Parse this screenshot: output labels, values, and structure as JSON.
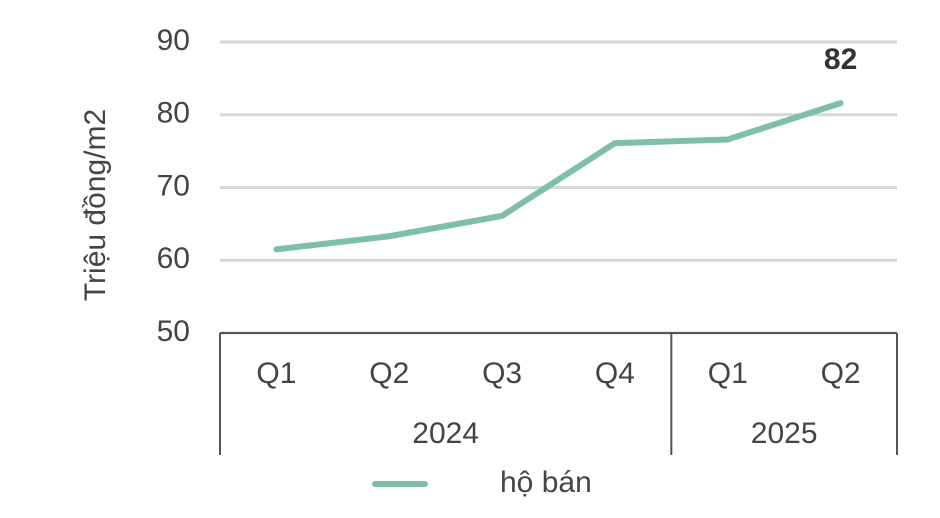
{
  "chart_data": {
    "type": "line",
    "y_label": "Triệu đồng/m2",
    "groups": [
      {
        "name": "2024",
        "categories": [
          "Q1",
          "Q2",
          "Q3",
          "Q4"
        ]
      },
      {
        "name": "2025",
        "categories": [
          "Q1",
          "Q2"
        ]
      }
    ],
    "series": [
      {
        "name": "hộ bán",
        "color": "#7dbfa8",
        "values": [
          61.5,
          63.3,
          66.1,
          76.1,
          76.6,
          81.6
        ],
        "value_labels": [
          null,
          null,
          null,
          null,
          null,
          "82"
        ]
      }
    ],
    "ylim": [
      50,
      90
    ],
    "yticks": [
      50,
      60,
      70,
      80,
      90
    ],
    "grid": true
  }
}
